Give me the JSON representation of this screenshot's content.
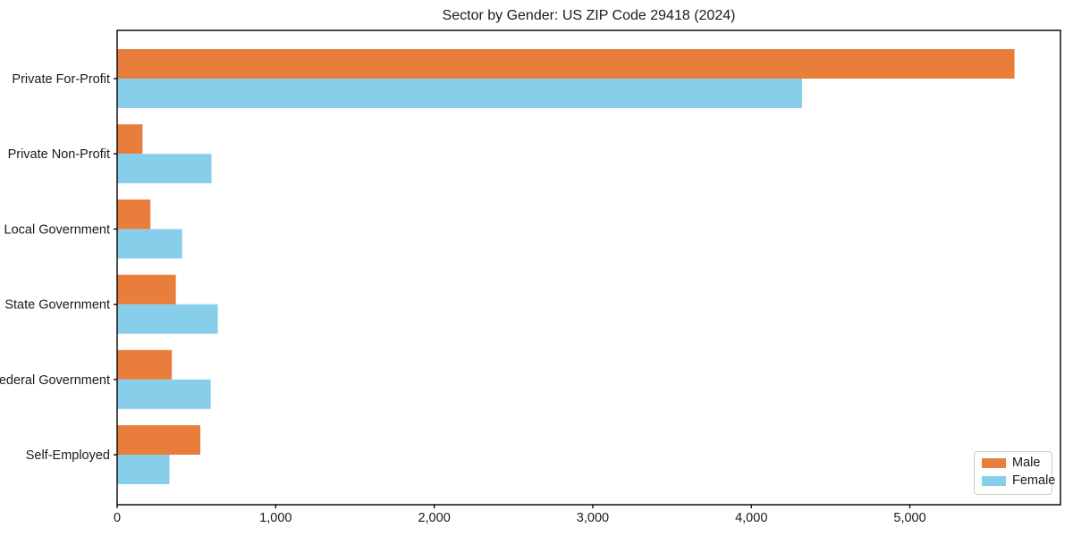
{
  "title": "Sector by Gender: US ZIP Code 29418 (2024)",
  "chart_data": {
    "type": "bar",
    "orientation": "horizontal",
    "title": "Sector by Gender: US ZIP Code 29418 (2024)",
    "categories": [
      "Private For-Profit",
      "Private Non-Profit",
      "Local Government",
      "State Government",
      "Federal Government",
      "Self-Employed"
    ],
    "series": [
      {
        "name": "Male",
        "color": "#e87d3c",
        "values": [
          5660,
          160,
          210,
          370,
          345,
          525
        ]
      },
      {
        "name": "Female",
        "color": "#87ceeb",
        "values": [
          4320,
          595,
          410,
          635,
          590,
          330
        ]
      }
    ],
    "xlabel": "",
    "ylabel": "",
    "xlim": [
      0,
      5950
    ],
    "xticks": [
      0,
      1000,
      2000,
      3000,
      4000,
      5000
    ],
    "xtick_labels": [
      "0",
      "1,000",
      "2,000",
      "3,000",
      "4,000",
      "5,000"
    ],
    "grid": false,
    "legend": {
      "position": "lower right",
      "entries": [
        "Male",
        "Female"
      ]
    }
  }
}
